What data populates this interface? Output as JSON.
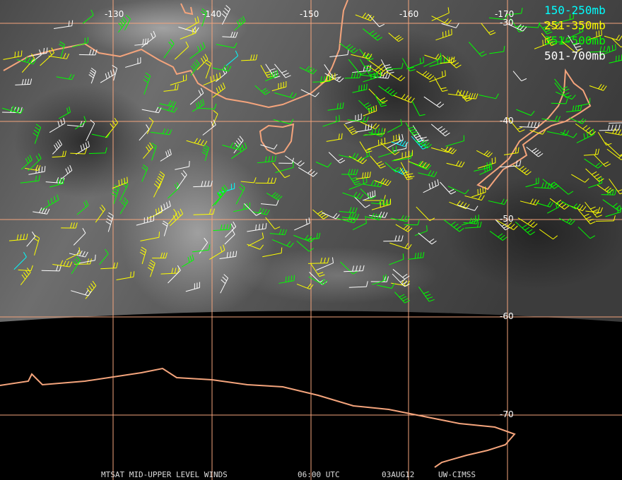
{
  "map": {
    "longitude_labels": [
      "-130",
      "-140",
      "-150",
      "-160",
      "-170"
    ],
    "latitude_labels": [
      "-30",
      "-40",
      "-50",
      "-60",
      "-70"
    ],
    "legend": [
      {
        "label": "150-250mb",
        "color": "#00ffff"
      },
      {
        "label": "251-350mb",
        "color": "#ffff00"
      },
      {
        "label": "351-500mb",
        "color": "#00ff00"
      },
      {
        "label": "501-700mb",
        "color": "#ffffff"
      }
    ],
    "caption": {
      "product": "MTSAT MID-UPPER LEVEL WINDS",
      "time": "06:00 UTC",
      "date": "03AUG12",
      "source": "UW-CIMSS"
    }
  }
}
